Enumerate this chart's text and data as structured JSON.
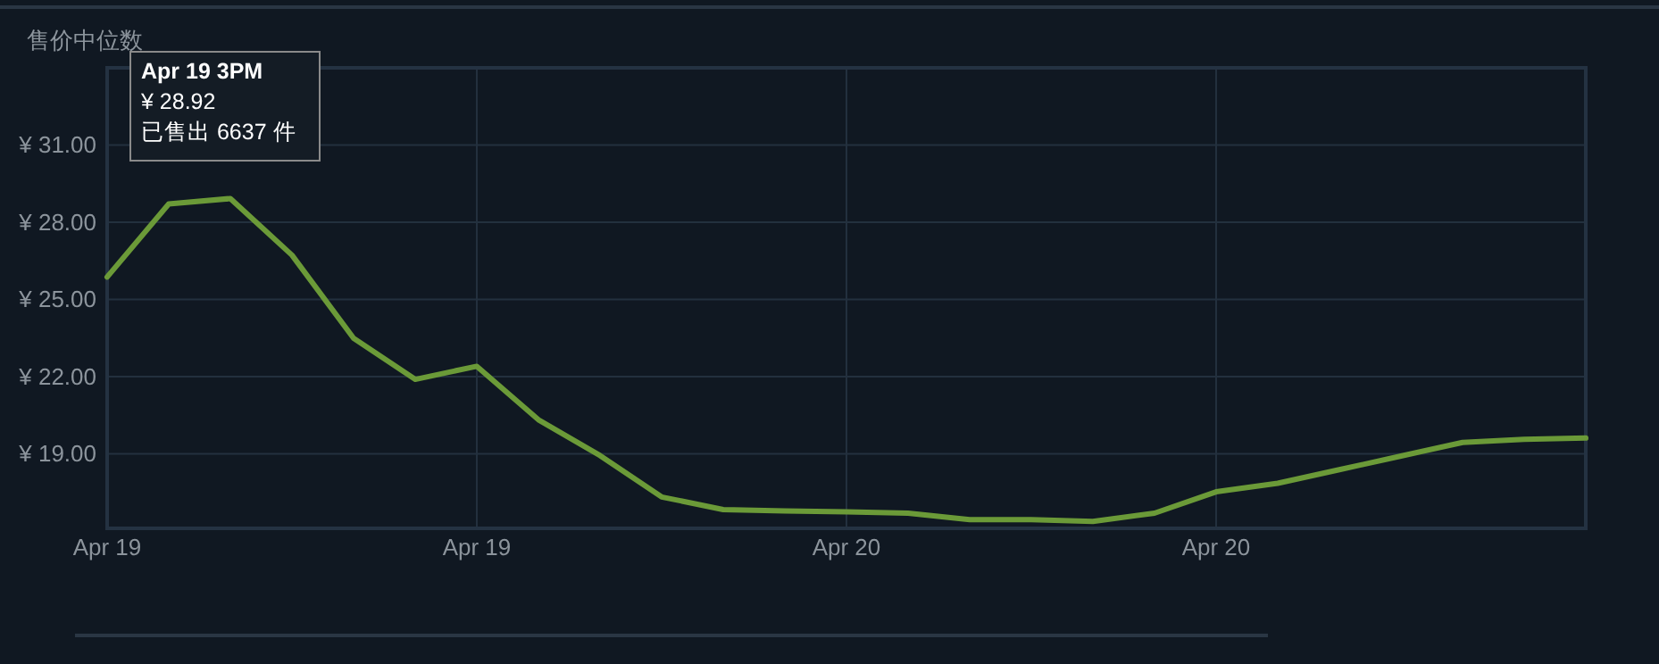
{
  "chart_data": {
    "type": "line",
    "ylabel": "售价中位数",
    "categories": [
      "Apr 19",
      null,
      null,
      null,
      null,
      null,
      "Apr 19",
      null,
      null,
      null,
      null,
      null,
      "Apr 20",
      null,
      null,
      null,
      null,
      null,
      "Apr 20",
      null,
      null,
      null,
      null,
      null,
      null
    ],
    "series": [
      {
        "color": "#6b9a38",
        "values": [
          25.87,
          28.71,
          28.92,
          26.72,
          23.49,
          21.89,
          22.4,
          20.32,
          18.93,
          17.32,
          16.83,
          16.78,
          16.74,
          16.69,
          16.44,
          16.44,
          16.37,
          16.69,
          17.52,
          17.85,
          18.38,
          18.91,
          19.44,
          19.56,
          19.61
        ]
      }
    ],
    "ylim": [
      16.1,
      34
    ],
    "yticks": [
      {
        "value": 19,
        "label": "¥ 19.00"
      },
      {
        "value": 22,
        "label": "¥ 22.00"
      },
      {
        "value": 25,
        "label": "¥ 25.00"
      },
      {
        "value": 28,
        "label": "¥ 28.00"
      },
      {
        "value": 31,
        "label": "¥ 31.00"
      }
    ],
    "grid": true,
    "marker": "none",
    "line_style": "solid",
    "annotations": [
      "Apr 19 3PM\n¥ 28.92\n已售出 6637 件"
    ]
  }
}
